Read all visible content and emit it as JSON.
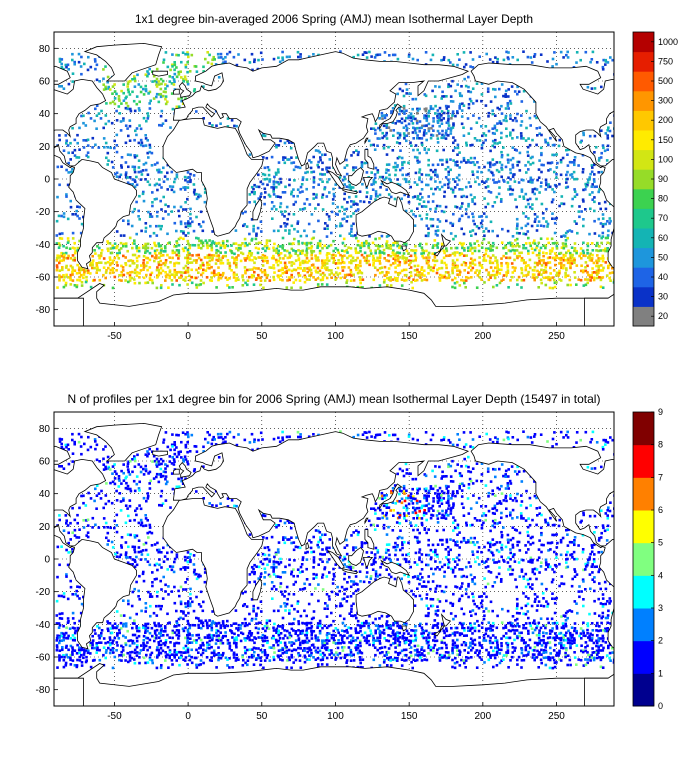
{
  "panel_top": {
    "title": "1x1 degree bin-averaged 2006 Spring (AMJ) mean Isothermal Layer Depth",
    "colorbar": {
      "labels": [
        "20",
        "30",
        "40",
        "50",
        "60",
        "70",
        "80",
        "90",
        "100",
        "150",
        "200",
        "300",
        "500",
        "750",
        "1000"
      ],
      "colors": [
        "#808080",
        "#0a32c8",
        "#1e64e6",
        "#1e96dc",
        "#14b4b4",
        "#1ec88c",
        "#3cd250",
        "#96dc28",
        "#d2e614",
        "#ffeb00",
        "#ffc800",
        "#ff9600",
        "#ff5a00",
        "#e61e00",
        "#b40000"
      ]
    }
  },
  "panel_bottom": {
    "title": "N of profiles per 1x1 degree bin for 2006 Spring (AMJ) mean Isothermal Layer Depth  (15497 in total)",
    "colorbar": {
      "labels": [
        "0",
        "1",
        "2",
        "3",
        "4",
        "5",
        "6",
        "7",
        "8",
        "9"
      ],
      "colors": [
        "#00008f",
        "#0000ff",
        "#0080ff",
        "#00ffff",
        "#80ff80",
        "#ffff00",
        "#ff8000",
        "#ff0000",
        "#800000"
      ]
    }
  },
  "axes": {
    "xticks": [
      "-50",
      "0",
      "50",
      "100",
      "150",
      "200",
      "250"
    ],
    "yticks": [
      "80",
      "60",
      "40",
      "20",
      "0",
      "-20",
      "-40",
      "-60",
      "-80"
    ]
  }
}
